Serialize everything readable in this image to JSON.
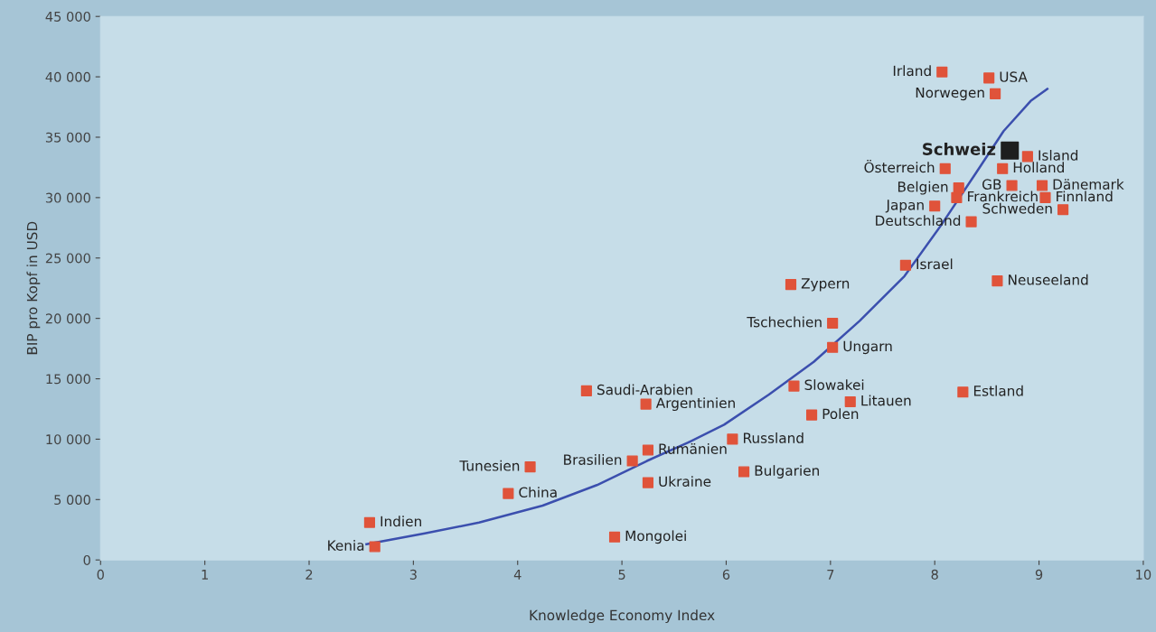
{
  "chart_data": {
    "type": "scatter",
    "xlabel": "Knowledge Economy Index",
    "ylabel": "BIP pro Kopf in USD",
    "xlim": [
      0,
      10
    ],
    "xticks": [
      0,
      1,
      2,
      3,
      4,
      5,
      6,
      7,
      8,
      9,
      10
    ],
    "ylim": [
      0,
      45000
    ],
    "yticks": [
      {
        "value": 0,
        "label": "0"
      },
      {
        "value": 5000,
        "label": "5 000"
      },
      {
        "value": 10000,
        "label": "10 000"
      },
      {
        "value": 15000,
        "label": "15 000"
      },
      {
        "value": 20000,
        "label": "20 000"
      },
      {
        "value": 25000,
        "label": "25 000"
      },
      {
        "value": 30000,
        "label": "30 000"
      },
      {
        "value": 35000,
        "label": "35 000"
      },
      {
        "value": 40000,
        "label": "40 000"
      },
      {
        "value": 45000,
        "label": "45 000"
      }
    ],
    "grid": false,
    "marker": "square",
    "series": [
      {
        "color": "#e0533a",
        "x": [
          8.07,
          8.52,
          8.58,
          8.89,
          8.1,
          8.65,
          8.74,
          9.03,
          8.23,
          8.21,
          9.06,
          8.0,
          9.23,
          8.35,
          7.72,
          8.6,
          6.62,
          7.02,
          7.02,
          6.65,
          4.66,
          8.27,
          7.19,
          5.23,
          6.82,
          6.06,
          5.25,
          5.1,
          4.12,
          6.17,
          5.25,
          3.91,
          2.58,
          4.93,
          2.63
        ],
        "values": [
          40400,
          39900,
          38600,
          33400,
          32400,
          32400,
          31000,
          31000,
          30800,
          30000,
          30000,
          29300,
          29000,
          28000,
          24400,
          23100,
          22800,
          19600,
          17600,
          14400,
          14000,
          13900,
          13100,
          12900,
          12000,
          10000,
          9100,
          8200,
          7700,
          7300,
          6400,
          5500,
          3100,
          1900,
          1100
        ]
      },
      {
        "color": "#1e1e1e",
        "x": [
          8.72
        ],
        "values": [
          33900
        ]
      },
      {
        "type": "line",
        "color": "#3b4fae",
        "marker": "none",
        "x": [
          2.55,
          3.11,
          3.63,
          4.24,
          4.76,
          5.24,
          5.63,
          5.98,
          6.41,
          6.84,
          7.28,
          7.71,
          8.06,
          8.4,
          8.66,
          8.92,
          9.08
        ],
        "values": [
          1300,
          2200,
          3100,
          4500,
          6200,
          8200,
          9700,
          11200,
          13700,
          16400,
          19800,
          23500,
          27700,
          32100,
          35500,
          38000,
          39000
        ]
      }
    ],
    "annotations": [
      {
        "text": "Irland",
        "x": 8.07,
        "y": 40400
      },
      {
        "text": "USA",
        "x": 8.52,
        "y": 39900
      },
      {
        "text": "Norwegen",
        "x": 8.58,
        "y": 38600
      },
      {
        "text": "Schweiz",
        "x": 8.72,
        "y": 33900
      },
      {
        "text": "Island",
        "x": 8.89,
        "y": 33400
      },
      {
        "text": "Österreich",
        "x": 8.1,
        "y": 32400
      },
      {
        "text": "Holland",
        "x": 8.65,
        "y": 32400
      },
      {
        "text": "GB",
        "x": 8.74,
        "y": 31000
      },
      {
        "text": "Dänemark",
        "x": 9.03,
        "y": 31000
      },
      {
        "text": "Belgien",
        "x": 8.23,
        "y": 30800
      },
      {
        "text": "Frankreich",
        "x": 8.21,
        "y": 30000
      },
      {
        "text": "Finnland",
        "x": 9.06,
        "y": 30000
      },
      {
        "text": "Japan",
        "x": 8.0,
        "y": 29300
      },
      {
        "text": "Schweden",
        "x": 9.23,
        "y": 29000
      },
      {
        "text": "Deutschland",
        "x": 8.35,
        "y": 28000
      },
      {
        "text": "Israel",
        "x": 7.72,
        "y": 24400
      },
      {
        "text": "Neuseeland",
        "x": 8.6,
        "y": 23100
      },
      {
        "text": "Zypern",
        "x": 6.62,
        "y": 22800
      },
      {
        "text": "Tschechien",
        "x": 7.02,
        "y": 19600
      },
      {
        "text": "Ungarn",
        "x": 7.02,
        "y": 17600
      },
      {
        "text": "Slowakei",
        "x": 6.65,
        "y": 14400
      },
      {
        "text": "Saudi-Arabien",
        "x": 4.66,
        "y": 14000
      },
      {
        "text": "Estland",
        "x": 8.27,
        "y": 13900
      },
      {
        "text": "Litauen",
        "x": 7.19,
        "y": 13100
      },
      {
        "text": "Argentinien",
        "x": 5.23,
        "y": 12900
      },
      {
        "text": "Polen",
        "x": 6.82,
        "y": 12000
      },
      {
        "text": "Russland",
        "x": 6.06,
        "y": 10000
      },
      {
        "text": "Rumänien",
        "x": 5.25,
        "y": 9100
      },
      {
        "text": "Brasilien",
        "x": 5.1,
        "y": 8200
      },
      {
        "text": "Tunesien",
        "x": 4.12,
        "y": 7700
      },
      {
        "text": "Bulgarien",
        "x": 6.17,
        "y": 7300
      },
      {
        "text": "Ukraine",
        "x": 5.25,
        "y": 6400
      },
      {
        "text": "China",
        "x": 3.91,
        "y": 5500
      },
      {
        "text": "Indien",
        "x": 2.58,
        "y": 3100
      },
      {
        "text": "Mongolei",
        "x": 4.93,
        "y": 1900
      },
      {
        "text": "Kenia",
        "x": 2.63,
        "y": 1100
      }
    ]
  }
}
